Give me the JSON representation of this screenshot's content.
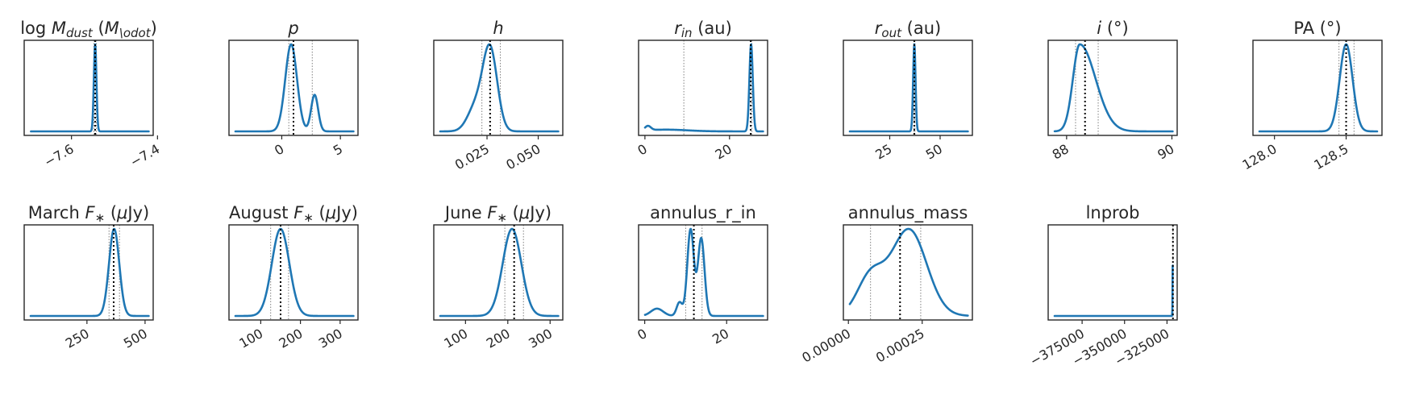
{
  "figure": {
    "line_color": "#1f77b4",
    "frame_color": "#262626",
    "median_color": "#000000",
    "quantile_color": "#808080"
  },
  "chart_data": [
    {
      "type": "line",
      "title": "log $M_{dust}$ ($M_{\\odot}$)",
      "xlim": [
        -7.71,
        -7.41
      ],
      "ticks": [
        {
          "v": -7.6,
          "label": "−7.6"
        },
        {
          "v": -7.4,
          "label": "−7.4"
        }
      ],
      "median": -7.545,
      "q16": -7.548,
      "q84": -7.542,
      "peaks": [
        {
          "mu": -7.545,
          "sig": 0.003,
          "a": 1.0
        }
      ],
      "bumps": []
    },
    {
      "type": "line",
      "title": "$p$",
      "xlim": [
        -4.5,
        6.5
      ],
      "ticks": [
        {
          "v": 0,
          "label": "0"
        },
        {
          "v": 5,
          "label": "5"
        }
      ],
      "median": 1.0,
      "q16": 0.6,
      "q84": 2.6,
      "peaks": [
        {
          "mu": 0.8,
          "sig": 0.5,
          "a": 1.0
        },
        {
          "mu": 2.8,
          "sig": 0.3,
          "a": 0.42
        }
      ],
      "bumps": []
    },
    {
      "type": "line",
      "title": "$h$",
      "xlim": [
        -0.001,
        0.062
      ],
      "ticks": [
        {
          "v": 0.025,
          "label": "0.025"
        },
        {
          "v": 0.05,
          "label": "0.050"
        }
      ],
      "median": 0.0265,
      "q16": 0.0225,
      "q84": 0.0315,
      "peaks": [
        {
          "mu": 0.0265,
          "sig": 0.0035,
          "a": 1.0
        }
      ],
      "bumps": [
        {
          "mu": 0.0195,
          "sig": 0.004,
          "a": 0.3
        }
      ]
    },
    {
      "type": "line",
      "title": "$r_{in}$ (au)",
      "xlim": [
        -1.5,
        29
      ],
      "ticks": [
        {
          "v": 0,
          "label": "0"
        },
        {
          "v": 20,
          "label": "20"
        }
      ],
      "median": 25.0,
      "q16": 9.2,
      "q84": 25.3,
      "peaks": [
        {
          "mu": 25.1,
          "sig": 0.4,
          "a": 1.0
        }
      ],
      "bumps": [
        {
          "mu": 0.7,
          "sig": 0.7,
          "a": 0.05
        },
        {
          "mu": 5,
          "sig": 5,
          "a": 0.02
        }
      ]
    },
    {
      "type": "line",
      "title": "$r_{out}$ (au)",
      "xlim": [
        2,
        66
      ],
      "ticks": [
        {
          "v": 25,
          "label": "25"
        },
        {
          "v": 50,
          "label": "50"
        }
      ],
      "median": 37.2,
      "q16": 36.9,
      "q84": 37.5,
      "peaks": [
        {
          "mu": 37.2,
          "sig": 0.6,
          "a": 1.0
        }
      ],
      "bumps": []
    },
    {
      "type": "line",
      "title": "$i$ (°)",
      "xlim": [
        87.65,
        90.1
      ],
      "ticks": [
        {
          "v": 88,
          "label": "88"
        },
        {
          "v": 90,
          "label": "90"
        }
      ],
      "median": 88.35,
      "q16": 88.17,
      "q84": 88.6,
      "peaks": [
        {
          "mu": 88.25,
          "sig": 0.13,
          "sigR": 0.3,
          "a": 1.0
        }
      ],
      "bumps": []
    },
    {
      "type": "line",
      "title": "PA  (°)",
      "xlim": [
        127.85,
        128.75
      ],
      "ticks": [
        {
          "v": 128.0,
          "label": "128.0"
        },
        {
          "v": 128.5,
          "label": "128.5"
        }
      ],
      "median": 128.5,
      "q16": 128.45,
      "q84": 128.555,
      "peaks": [
        {
          "mu": 128.5,
          "sig": 0.045,
          "a": 1.0
        }
      ],
      "bumps": []
    },
    {
      "type": "line",
      "title": "March $F_{*}$ ($\\mu$Jy)",
      "xlim": [
        -20,
        535
      ],
      "ticks": [
        {
          "v": 250,
          "label": "250"
        },
        {
          "v": 500,
          "label": "500"
        }
      ],
      "median": 365,
      "q16": 345,
      "q84": 390,
      "peaks": [
        {
          "mu": 367,
          "sig": 22,
          "a": 1.0
        }
      ],
      "bumps": []
    },
    {
      "type": "line",
      "title": "August $F_{*}$ ($\\mu$Jy)",
      "xlim": [
        20,
        345
      ],
      "ticks": [
        {
          "v": 100,
          "label": "100"
        },
        {
          "v": 200,
          "label": "200"
        },
        {
          "v": 300,
          "label": "300"
        }
      ],
      "median": 150,
      "q16": 125,
      "q84": 170,
      "peaks": [
        {
          "mu": 150,
          "sig": 22,
          "a": 1.0
        }
      ],
      "bumps": []
    },
    {
      "type": "line",
      "title": "June $F_{*}$ ($\\mu$Jy)",
      "xlim": [
        25,
        330
      ],
      "ticks": [
        {
          "v": 100,
          "label": "100"
        },
        {
          "v": 200,
          "label": "200"
        },
        {
          "v": 300,
          "label": "300"
        }
      ],
      "median": 215,
      "q16": 193,
      "q84": 237,
      "peaks": [
        {
          "mu": 210,
          "sig": 22,
          "a": 1.0
        }
      ],
      "bumps": []
    },
    {
      "type": "line",
      "title": "annulus_r_in",
      "xlim": [
        -1.5,
        30
      ],
      "ticks": [
        {
          "v": 0,
          "label": "0"
        },
        {
          "v": 20,
          "label": "20"
        }
      ],
      "median": 12.0,
      "q16": 10.0,
      "q84": 14.0,
      "peaks": [
        {
          "mu": 11.2,
          "sig": 0.8,
          "a": 0.95
        },
        {
          "mu": 13.8,
          "sig": 0.8,
          "a": 0.85
        }
      ],
      "bumps": [
        {
          "mu": 8.5,
          "sig": 0.7,
          "a": 0.15
        },
        {
          "mu": 3.0,
          "sig": 1.5,
          "a": 0.08
        }
      ]
    },
    {
      "type": "line",
      "title": "annulus_mass",
      "xlim": [
        -1.7e-05,
        0.00042
      ],
      "ticks": [
        {
          "v": 0.0,
          "label": "0.00000"
        },
        {
          "v": 0.00025,
          "label": "0.00025"
        }
      ],
      "median": 0.000175,
      "q16": 7.5e-05,
      "q84": 0.000245,
      "peaks": [
        {
          "mu": 7.5e-05,
          "sig": 4.5e-05,
          "a": 0.45
        },
        {
          "mu": 0.000205,
          "sig": 6e-05,
          "a": 1.0
        }
      ],
      "bumps": []
    },
    {
      "type": "line",
      "title": "lnprob",
      "xlim": [
        -395000,
        -319000
      ],
      "ticks": [
        {
          "v": -375000,
          "label": "−375000"
        },
        {
          "v": -350000,
          "label": "−350000"
        },
        {
          "v": -325000,
          "label": "−325000"
        }
      ],
      "median": -321500,
      "q16": -321600,
      "q84": -321400,
      "peaks": [
        {
          "mu": -321500,
          "sig": 150,
          "a": 1.0
        }
      ],
      "bumps": []
    }
  ]
}
